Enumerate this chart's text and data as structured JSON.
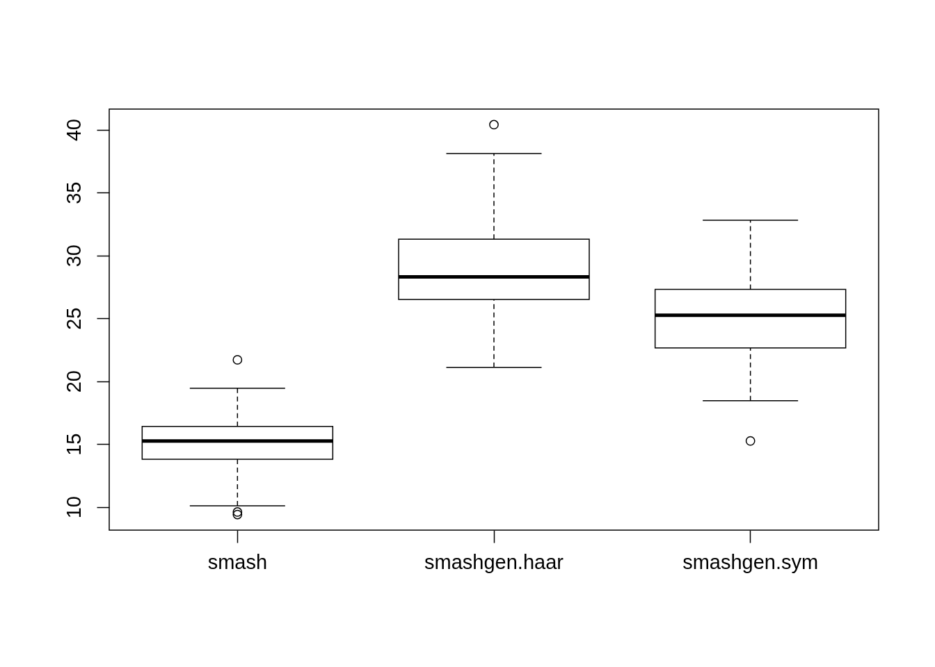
{
  "chart_data": {
    "type": "box",
    "categories": [
      "smash",
      "smashgen.haar",
      "smashgen.sym"
    ],
    "boxes": [
      {
        "low": 10.1,
        "q1": 13.8,
        "median": 15.25,
        "q3": 16.4,
        "high": 19.45,
        "outliers": [
          21.7,
          9.6,
          9.4
        ]
      },
      {
        "low": 21.1,
        "q1": 26.5,
        "median": 28.3,
        "q3": 31.3,
        "high": 38.1,
        "outliers": [
          40.4
        ]
      },
      {
        "low": 18.45,
        "q1": 22.65,
        "median": 25.25,
        "q3": 27.3,
        "high": 32.8,
        "outliers": [
          15.25
        ]
      }
    ],
    "ylim": [
      8.16,
      41.64
    ],
    "yticks": [
      10,
      15,
      20,
      25,
      30,
      35,
      40
    ],
    "grid": false
  }
}
